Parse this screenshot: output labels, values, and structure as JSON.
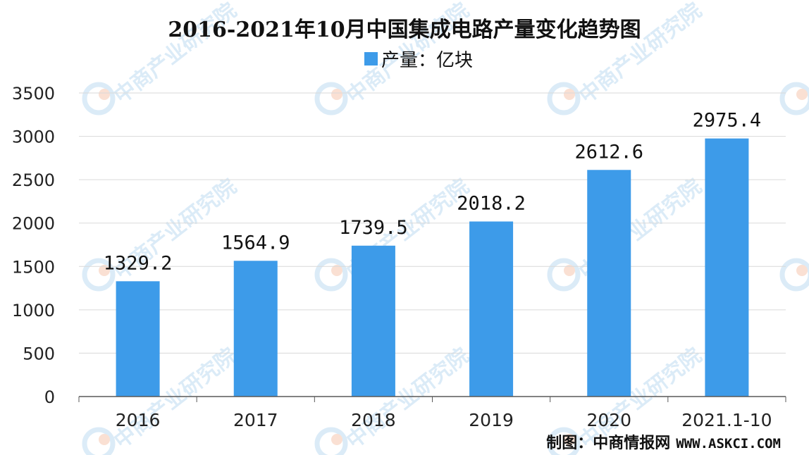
{
  "colors": {
    "bar": "#3d9be9",
    "grid": "#d9d9d9",
    "axis": "#595959",
    "watermark": "#bfdcf2",
    "watermark_accent": "#f6c7b0"
  },
  "watermark": {
    "text": "中商产业研究院",
    "logo_icon": "cci-logo-icon"
  },
  "source": {
    "prefix": "制图：中商情报网",
    "url": "WWW.ASKCI.COM"
  },
  "chart_data": {
    "type": "bar",
    "title": "2016-2021年10月中国集成电路产量变化趋势图",
    "legend": {
      "label": "产量：亿块",
      "placement": "top-center"
    },
    "categories": [
      "2016",
      "2017",
      "2018",
      "2019",
      "2020",
      "2021.1-10"
    ],
    "series": [
      {
        "name": "产量：亿块",
        "values": [
          1329.2,
          1564.9,
          1739.5,
          2018.2,
          2612.6,
          2975.4
        ]
      }
    ],
    "data_labels": [
      "1329.2",
      "1564.9",
      "1739.5",
      "2018.2",
      "2612.6",
      "2975.4"
    ],
    "y_ticks": [
      0,
      500,
      1000,
      1500,
      2000,
      2500,
      3000,
      3500
    ],
    "ylim": [
      0,
      3500
    ],
    "grid": true,
    "xlabel": "",
    "ylabel": ""
  }
}
